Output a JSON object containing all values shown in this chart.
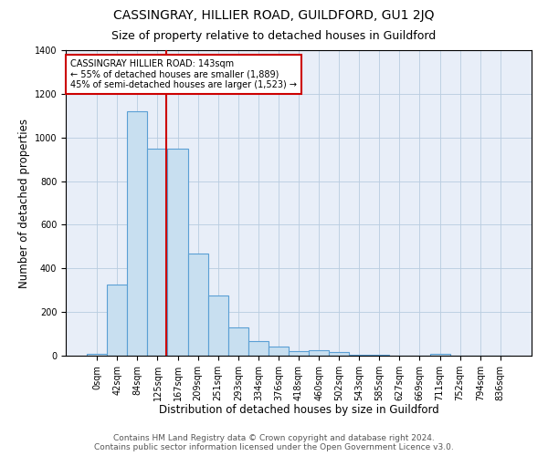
{
  "title": "CASSINGRAY, HILLIER ROAD, GUILDFORD, GU1 2JQ",
  "subtitle": "Size of property relative to detached houses in Guildford",
  "xlabel": "Distribution of detached houses by size in Guildford",
  "ylabel": "Number of detached properties",
  "bar_labels": [
    "0sqm",
    "42sqm",
    "84sqm",
    "125sqm",
    "167sqm",
    "209sqm",
    "251sqm",
    "293sqm",
    "334sqm",
    "376sqm",
    "418sqm",
    "460sqm",
    "502sqm",
    "543sqm",
    "585sqm",
    "627sqm",
    "669sqm",
    "711sqm",
    "752sqm",
    "794sqm",
    "836sqm"
  ],
  "bar_values": [
    8,
    325,
    1120,
    950,
    950,
    470,
    275,
    128,
    68,
    42,
    22,
    25,
    18,
    5,
    3,
    2,
    1,
    10,
    1,
    1,
    1
  ],
  "bar_color": "#c8dff0",
  "bar_edge_color": "#5a9fd4",
  "vline_color": "#cc0000",
  "annotation_text": "CASSINGRAY HILLIER ROAD: 143sqm\n← 55% of detached houses are smaller (1,889)\n45% of semi-detached houses are larger (1,523) →",
  "annotation_box_color": "white",
  "annotation_box_edge_color": "#cc0000",
  "ylim": [
    0,
    1400
  ],
  "yticks": [
    0,
    200,
    400,
    600,
    800,
    1000,
    1200,
    1400
  ],
  "footer_line1": "Contains HM Land Registry data © Crown copyright and database right 2024.",
  "footer_line2": "Contains public sector information licensed under the Open Government Licence v3.0.",
  "plot_background_color": "#e8eef8",
  "title_fontsize": 10,
  "subtitle_fontsize": 9,
  "axis_label_fontsize": 8.5,
  "tick_fontsize": 7,
  "footer_fontsize": 6.5,
  "annotation_fontsize": 7
}
